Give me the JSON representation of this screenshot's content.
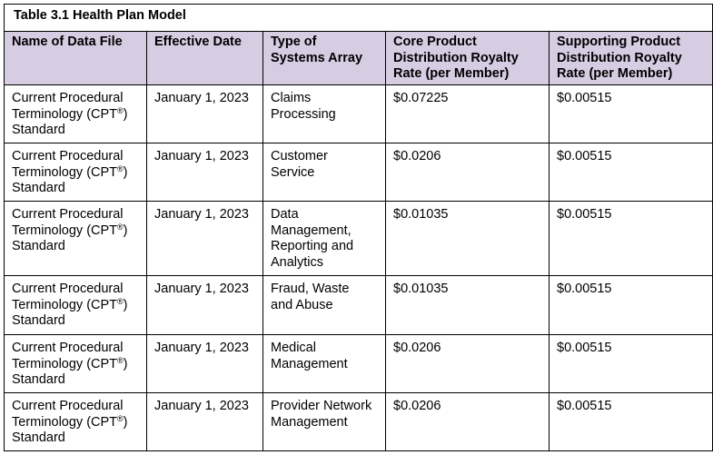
{
  "table": {
    "caption": "Table 3.1 Health Plan Model",
    "headers": {
      "col1": [
        "Name of Data File"
      ],
      "col2": [
        "Effective Date"
      ],
      "col3": [
        "Type of",
        "Systems Array"
      ],
      "col4": [
        "Core Product",
        "Distribution Royalty",
        "Rate (per Member)"
      ],
      "col5": [
        "Supporting Product",
        "Distribution Royalty",
        "Rate (per Member)"
      ]
    },
    "rows": [
      {
        "name": [
          "Current Procedural",
          "Terminology (CPT",
          ")",
          "Standard"
        ],
        "date": "January 1, 2023",
        "type": [
          "Claims",
          "Processing"
        ],
        "core": "$0.07225",
        "support": "$0.00515"
      },
      {
        "name": [
          "Current Procedural",
          "Terminology (CPT",
          ")",
          "Standard"
        ],
        "date": "January 1, 2023",
        "type": [
          "Customer",
          "Service"
        ],
        "core": "$0.0206",
        "support": "$0.00515"
      },
      {
        "name": [
          "Current Procedural",
          "Terminology (CPT",
          ")",
          "Standard"
        ],
        "date": "January 1, 2023",
        "type": [
          "Data",
          "Management,",
          "Reporting and",
          "Analytics"
        ],
        "core": "$0.01035",
        "support": "$0.00515"
      },
      {
        "name": [
          "Current Procedural",
          "Terminology (CPT",
          ")",
          "Standard"
        ],
        "date": "January 1, 2023",
        "type": [
          "Fraud, Waste",
          "and Abuse"
        ],
        "core": "$0.01035",
        "support": "$0.00515"
      },
      {
        "name": [
          "Current Procedural",
          "Terminology (CPT",
          ")",
          "Standard"
        ],
        "date": "January 1, 2023",
        "type": [
          "Medical",
          "Management"
        ],
        "core": "$0.0206",
        "support": "$0.00515"
      },
      {
        "name": [
          "Current Procedural",
          "Terminology (CPT",
          ")",
          "Standard"
        ],
        "date": "January 1, 2023",
        "type": [
          "Provider Network",
          "Management"
        ],
        "core": "$0.0206",
        "support": "$0.00515"
      }
    ],
    "registered_mark": "®"
  }
}
